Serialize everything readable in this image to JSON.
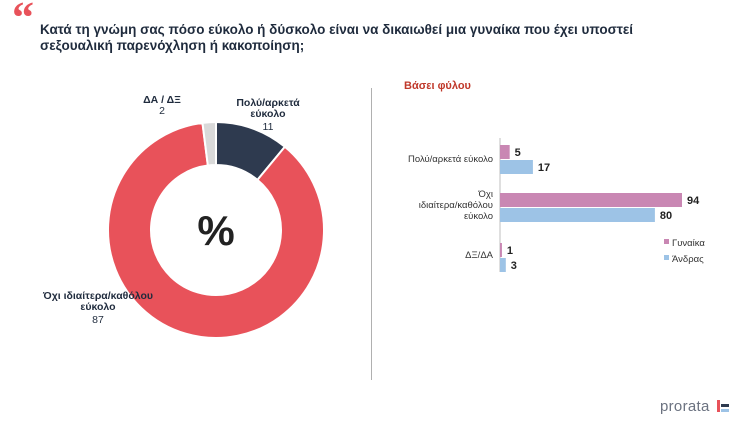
{
  "header": {
    "quote_mark": "“",
    "title": "Κατά τη γνώμη σας πόσο εύκολο ή δύσκολο είναι να δικαιωθεί μια γυναίκα που έχει υποστεί σεξουαλική παρενόχληση ή κακοποίηση;"
  },
  "brand": {
    "name": "prorata"
  },
  "colors": {
    "accent": "#e8525a",
    "navy": "#2e3a4f",
    "light_gray": "#d9d9d9",
    "women": "#c987b3",
    "men": "#9dc3e6"
  },
  "chart_data": [
    {
      "type": "pie",
      "center_label": "%",
      "slices": [
        {
          "label": "Πολύ/αρκετά εύκολο",
          "value": 11,
          "color": "#2e3a4f"
        },
        {
          "label": "Όχι ιδιαίτερα/καθόλου εύκολο",
          "value": 87,
          "color": "#e8525a"
        },
        {
          "label": "ΔΑ / ΔΞ",
          "value": 2,
          "color": "#d9d9d9"
        }
      ]
    },
    {
      "type": "bar",
      "orientation": "horizontal",
      "title": "Βάσει φύλου",
      "categories": [
        "Πολύ/αρκετά εύκολο",
        "Όχι ιδιαίτερα/καθόλου εύκολο",
        "ΔΞ/ΔΑ"
      ],
      "series": [
        {
          "name": "Γυναίκα",
          "values": [
            5,
            94,
            1
          ],
          "color": "#c987b3"
        },
        {
          "name": "Άνδρας",
          "values": [
            17,
            80,
            3
          ],
          "color": "#9dc3e6"
        }
      ],
      "legend_position": "right"
    }
  ]
}
